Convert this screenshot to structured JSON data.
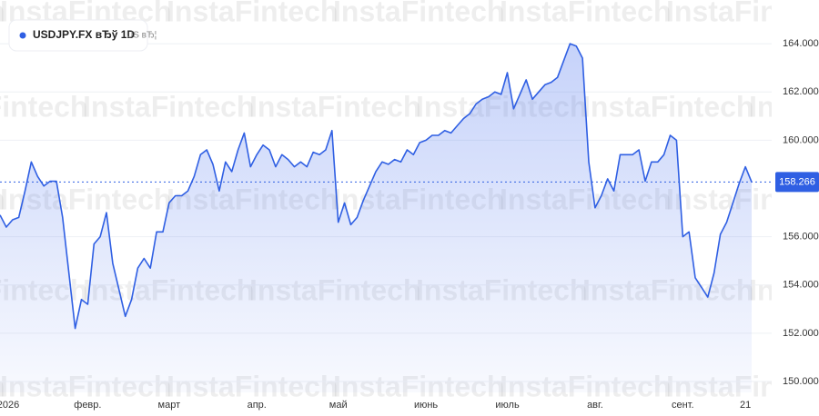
{
  "chart_data": {
    "type": "area",
    "legend": {
      "symbol": "USDJPY.FX вЂў 1D",
      "extra": "US вЂ¦"
    },
    "watermark": "InstaFintech",
    "color": "#2f5fe3",
    "grid": true,
    "ylim": [
      149.55,
      165.81
    ],
    "yticks": [
      {
        "value": 150,
        "label": "150.000"
      },
      {
        "value": 152,
        "label": "152.000"
      },
      {
        "value": 154,
        "label": "154.000"
      },
      {
        "value": 156,
        "label": "156.000"
      },
      {
        "value": 160,
        "label": "160.000"
      },
      {
        "value": 162,
        "label": "162.000"
      },
      {
        "value": 164,
        "label": "164.000"
      }
    ],
    "categories": [
      null,
      "2026",
      null,
      null,
      null,
      null,
      null,
      null,
      null,
      null,
      null,
      null,
      null,
      null,
      "февр.",
      null,
      null,
      null,
      null,
      null,
      null,
      null,
      null,
      null,
      null,
      null,
      null,
      "март",
      null,
      null,
      null,
      null,
      null,
      null,
      null,
      null,
      null,
      null,
      null,
      null,
      null,
      "апр.",
      null,
      null,
      null,
      null,
      null,
      null,
      null,
      null,
      null,
      null,
      null,
      null,
      "май",
      null,
      null,
      null,
      null,
      null,
      null,
      null,
      null,
      null,
      null,
      null,
      null,
      null,
      "июнь",
      null,
      null,
      null,
      null,
      null,
      null,
      null,
      null,
      null,
      null,
      null,
      null,
      "июль",
      null,
      null,
      null,
      null,
      null,
      null,
      null,
      null,
      null,
      null,
      null,
      null,
      null,
      "авг.",
      null,
      null,
      null,
      null,
      null,
      null,
      null,
      null,
      null,
      null,
      null,
      null,
      null,
      "сент.",
      null,
      null,
      null,
      null,
      null,
      null,
      null,
      null,
      null,
      "21",
      null
    ],
    "values": [
      156.9,
      156.4,
      156.7,
      156.8,
      157.9,
      159.1,
      158.5,
      158.1,
      158.3,
      158.3,
      156.8,
      154.5,
      152.2,
      153.4,
      153.2,
      155.7,
      156.0,
      157.0,
      154.9,
      153.8,
      152.7,
      153.4,
      154.7,
      155.1,
      154.7,
      156.2,
      156.2,
      157.4,
      157.7,
      157.7,
      157.9,
      158.5,
      159.4,
      159.6,
      159.0,
      157.9,
      159.1,
      158.7,
      159.6,
      160.3,
      158.9,
      159.4,
      159.8,
      159.6,
      158.9,
      159.4,
      159.2,
      158.9,
      159.1,
      158.9,
      159.5,
      159.4,
      159.6,
      160.4,
      156.6,
      157.4,
      156.5,
      156.8,
      157.5,
      158.1,
      158.7,
      159.1,
      159.0,
      159.2,
      159.1,
      159.6,
      159.4,
      159.9,
      160.0,
      160.2,
      160.2,
      160.4,
      160.3,
      160.6,
      160.9,
      161.1,
      161.5,
      161.7,
      161.8,
      162.0,
      161.9,
      162.8,
      161.3,
      161.9,
      162.5,
      161.7,
      162.0,
      162.3,
      162.4,
      162.6,
      163.3,
      164.0,
      163.9,
      163.4,
      159.1,
      157.2,
      157.7,
      158.4,
      157.9,
      159.4,
      159.4,
      159.4,
      159.6,
      158.3,
      159.1,
      159.1,
      159.4,
      160.2,
      160.0,
      156.0,
      156.2,
      154.3,
      153.9,
      153.5,
      154.5,
      156.1,
      156.6,
      157.4,
      158.2,
      158.9,
      158.266
    ]
  }
}
